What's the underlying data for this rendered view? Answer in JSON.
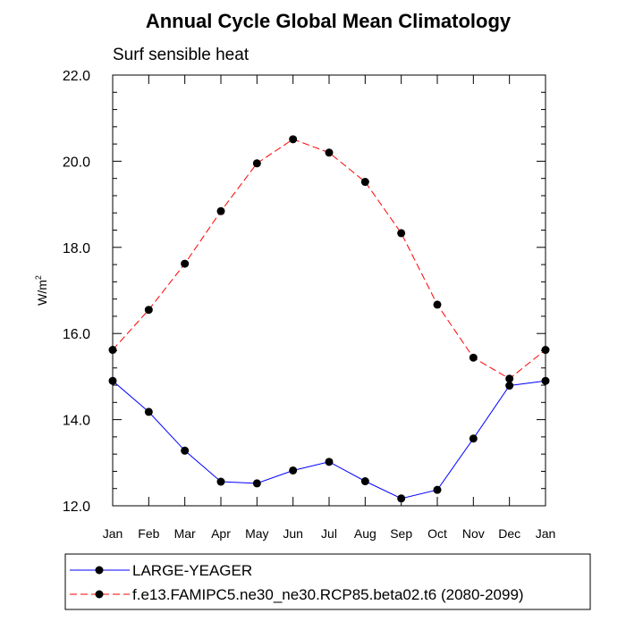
{
  "chart_data": {
    "type": "line",
    "title": "Annual Cycle Global Mean Climatology",
    "subtitle": "Surf sensible heat",
    "ylabel": "W/m",
    "ylabel_superscript": "2",
    "xlabel": "",
    "categories": [
      "Jan",
      "Feb",
      "Mar",
      "Apr",
      "May",
      "Jun",
      "Jul",
      "Aug",
      "Sep",
      "Oct",
      "Nov",
      "Dec",
      "Jan"
    ],
    "ylim": [
      12.0,
      22.0
    ],
    "yticks": [
      12.0,
      14.0,
      16.0,
      18.0,
      20.0,
      22.0
    ],
    "ytick_labels": [
      "12.0",
      "14.0",
      "16.0",
      "18.0",
      "20.0",
      "22.0"
    ],
    "grid": false,
    "legend_position": "bottom",
    "series": [
      {
        "name": "LARGE-YEAGER",
        "color": "#0000ff",
        "line_style": "solid",
        "marker": "filled-circle",
        "values": [
          14.9,
          14.18,
          13.28,
          12.56,
          12.52,
          12.82,
          13.02,
          12.57,
          12.17,
          12.37,
          13.56,
          14.79,
          14.9
        ]
      },
      {
        "name": "f.e13.FAMIPC5.ne30_ne30.RCP85.beta02.t6 (2080-2099)",
        "color": "#ff0000",
        "line_style": "dashed",
        "marker": "filled-circle",
        "values": [
          15.62,
          16.55,
          17.62,
          18.84,
          19.95,
          20.51,
          20.2,
          19.52,
          18.33,
          16.67,
          15.44,
          14.95,
          15.62
        ]
      }
    ]
  }
}
